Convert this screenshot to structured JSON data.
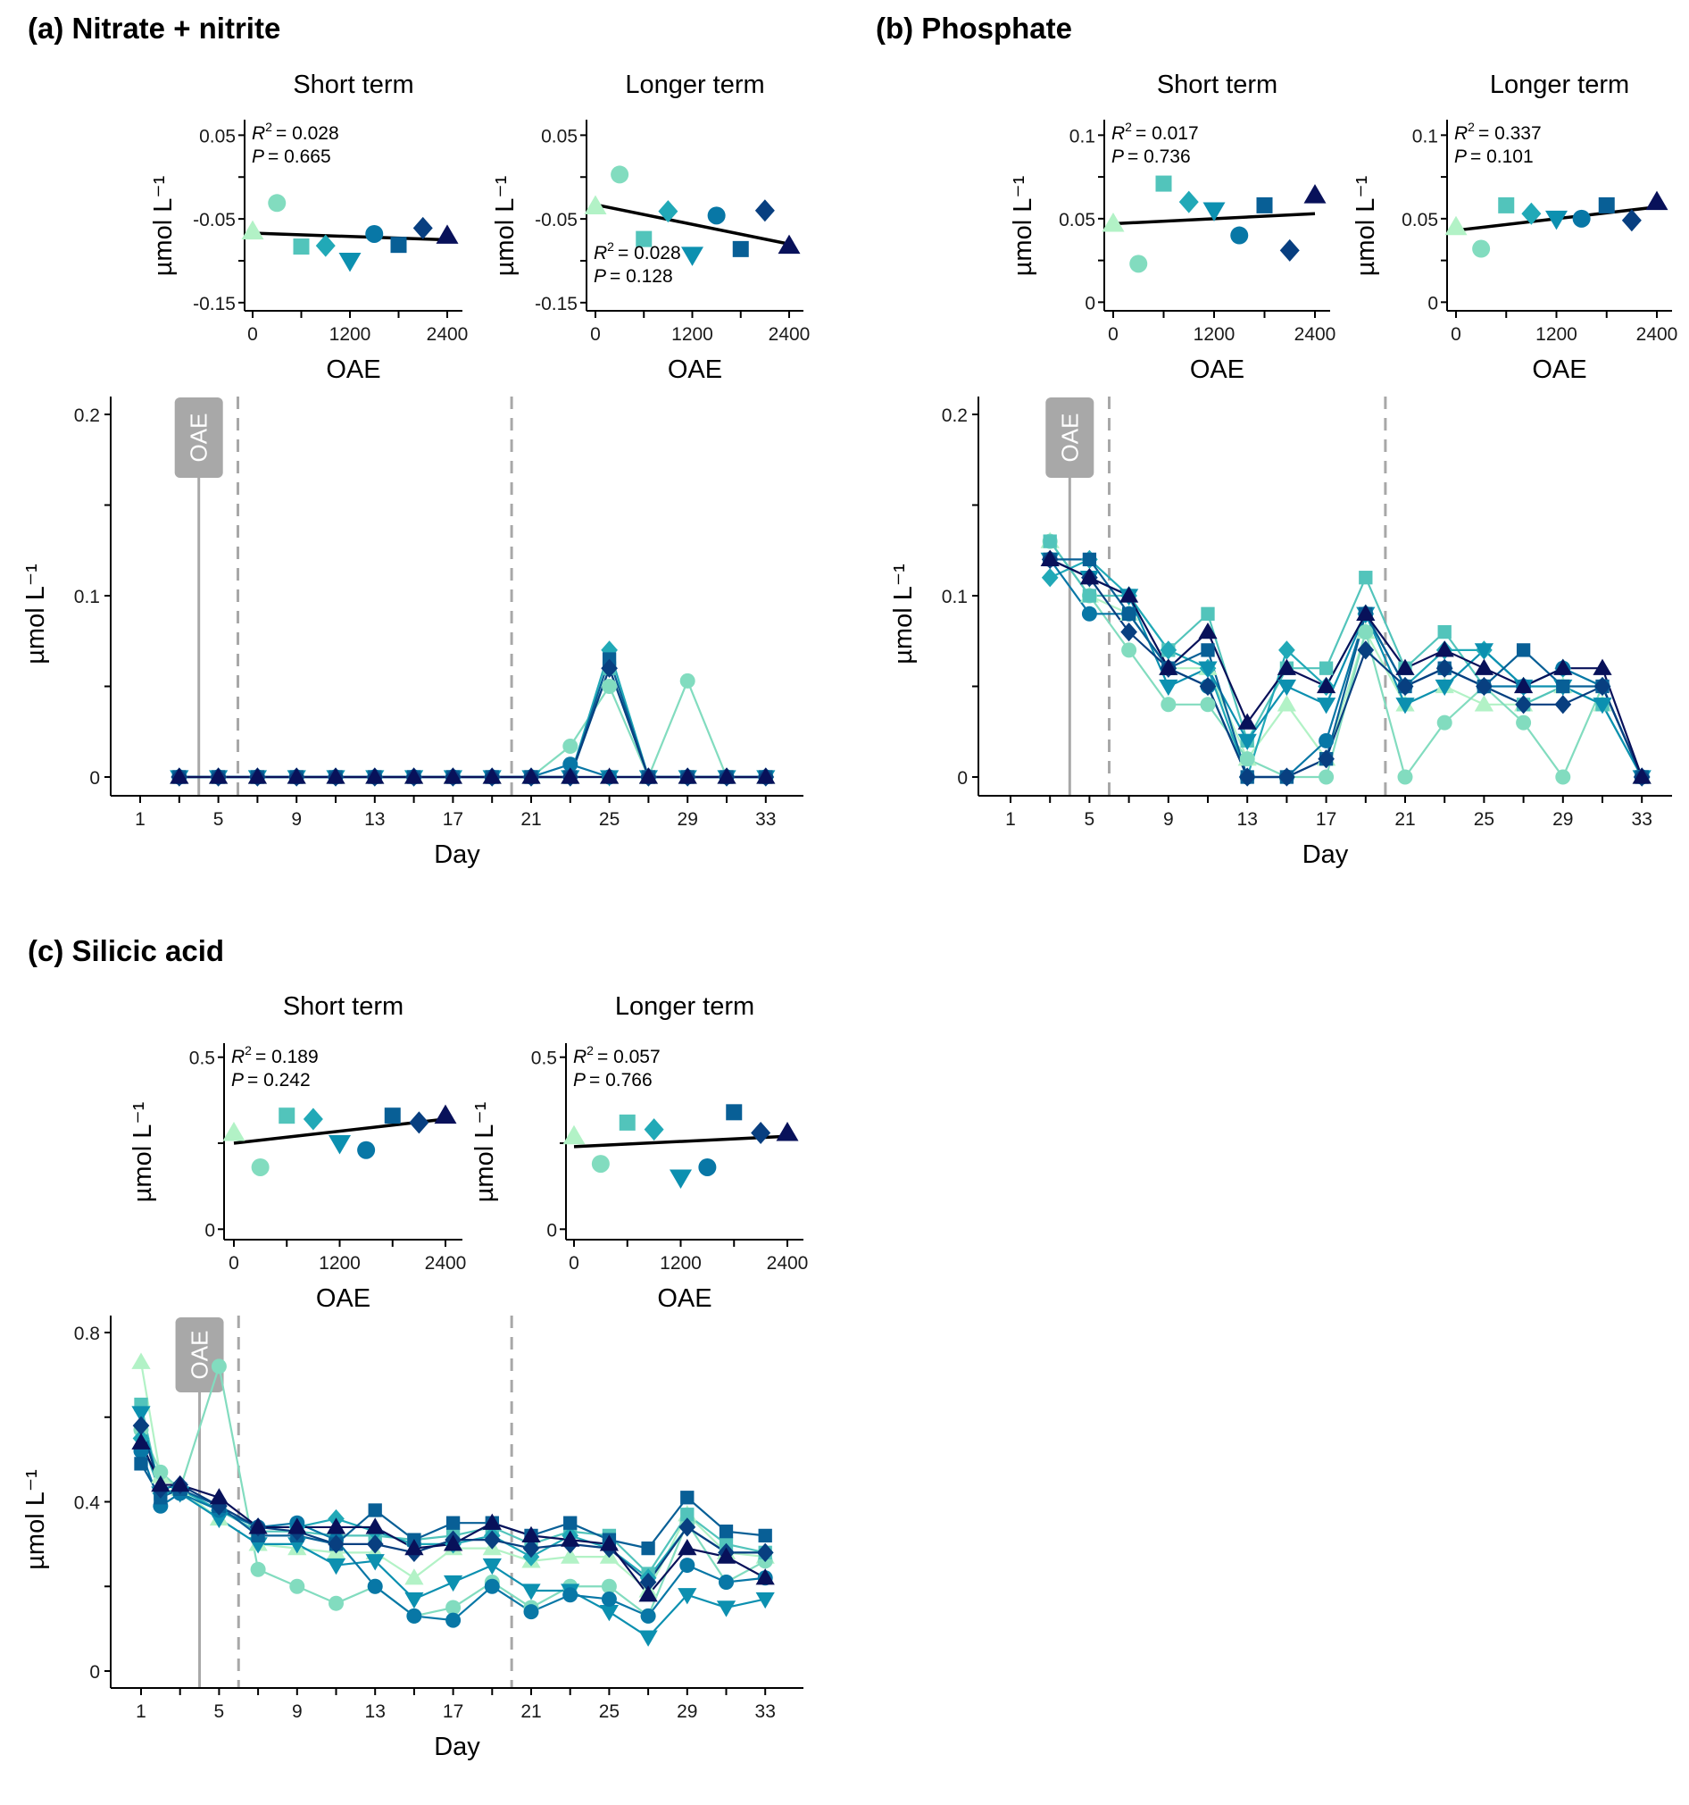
{
  "figure": {
    "colors": {
      "0": "#b2f2c6",
      "300": "#82dcbf",
      "600": "#52c4bb",
      "900": "#21a9b7",
      "1200": "#0c90b0",
      "1500": "#0877a6",
      "1800": "#085f96",
      "2100": "#083f80",
      "2400": "#08115a",
      "fit_line": "#000000",
      "oae_marker": "#a8a8a8"
    },
    "oae_marker_label": "OAE",
    "oae_marker_day": 4,
    "phase_boundaries_days": [
      6,
      20
    ]
  },
  "chart_data": [
    {
      "id": "a",
      "title": "(a) Nitrate + nitrite",
      "type": "line",
      "xlabel": "Day",
      "ylabel": "µmol L⁻¹",
      "ylim": [
        0,
        0.2
      ],
      "yticks": [
        "0",
        "0.1",
        "0.2"
      ],
      "xticks": [
        "1",
        "5",
        "9",
        "13",
        "17",
        "21",
        "25",
        "29",
        "33"
      ],
      "x": [
        3,
        5,
        7,
        9,
        11,
        13,
        15,
        17,
        19,
        21,
        23,
        25,
        27,
        29,
        31,
        33
      ],
      "series": [
        {
          "name": "0",
          "marker": "triangle-up",
          "values": [
            0,
            0,
            0,
            0,
            0,
            0,
            0,
            0,
            0,
            0,
            0,
            0,
            0,
            0,
            0,
            0
          ]
        },
        {
          "name": "300",
          "marker": "circle",
          "values": [
            0,
            0,
            0,
            0,
            0,
            0,
            0,
            0,
            0,
            0,
            0.017,
            0.05,
            0,
            0.053,
            0,
            0
          ]
        },
        {
          "name": "600",
          "marker": "square",
          "values": [
            0,
            0,
            0,
            0,
            0,
            0,
            0,
            0,
            0,
            0,
            0,
            0.06,
            0,
            0,
            0,
            0
          ]
        },
        {
          "name": "900",
          "marker": "diamond",
          "values": [
            0,
            0,
            0,
            0,
            0,
            0,
            0,
            0,
            0,
            0,
            0,
            0.07,
            0,
            0,
            0,
            0
          ]
        },
        {
          "name": "1200",
          "marker": "triangle-down",
          "values": [
            0,
            0,
            0,
            0,
            0,
            0,
            0,
            0,
            0,
            0,
            0,
            0,
            0,
            0,
            0,
            0
          ]
        },
        {
          "name": "1500",
          "marker": "circle",
          "values": [
            0,
            0,
            0,
            0,
            0,
            0,
            0,
            0,
            0,
            0,
            0.007,
            0,
            0,
            0,
            0,
            0
          ]
        },
        {
          "name": "1800",
          "marker": "square",
          "values": [
            0,
            0,
            0,
            0,
            0,
            0,
            0,
            0,
            0,
            0,
            0,
            0.065,
            0,
            0,
            0,
            0
          ]
        },
        {
          "name": "2100",
          "marker": "diamond",
          "values": [
            0,
            0,
            0,
            0,
            0,
            0,
            0,
            0,
            0,
            0,
            0,
            0.06,
            0,
            0,
            0,
            0
          ]
        },
        {
          "name": "2400",
          "marker": "triangle-up",
          "values": [
            0,
            0,
            0,
            0,
            0,
            0,
            0,
            0,
            0,
            0,
            0,
            0,
            0,
            0,
            0,
            0
          ]
        }
      ],
      "insets": [
        {
          "title": "Short term",
          "xlabel": "OAE",
          "ylabel": "µmol L⁻¹",
          "ylim": [
            -0.17,
            0.06
          ],
          "yticks": [
            "-0.15",
            "-0.05",
            "0.05"
          ],
          "ytick_values": [
            -0.15,
            -0.05,
            0.05
          ],
          "xticks": [
            "0",
            "1200",
            "2400"
          ],
          "x": [
            0,
            300,
            600,
            900,
            1200,
            1500,
            1800,
            2100,
            2400
          ],
          "y": [
            -0.065,
            -0.031,
            -0.083,
            -0.082,
            -0.1,
            -0.068,
            -0.081,
            -0.061,
            -0.07
          ],
          "fit": [
            -0.067,
            -0.075
          ],
          "stats": {
            "r2": "= 0.028",
            "p": "= 0.665",
            "position": "top-left"
          }
        },
        {
          "title": "Longer term",
          "xlabel": "OAE",
          "ylabel": "µmol L⁻¹",
          "ylim": [
            -0.17,
            0.06
          ],
          "yticks": [
            "-0.15",
            "-0.05",
            "0.05"
          ],
          "ytick_values": [
            -0.15,
            -0.05,
            0.05
          ],
          "xticks": [
            "0",
            "1200",
            "2400"
          ],
          "x": [
            0,
            300,
            600,
            900,
            1200,
            1500,
            1800,
            2100,
            2400
          ],
          "y": [
            -0.035,
            0.003,
            -0.074,
            -0.041,
            -0.093,
            -0.046,
            -0.086,
            -0.04,
            -0.082
          ],
          "fit": [
            -0.033,
            -0.08
          ],
          "stats": {
            "r2": "= 0.028",
            "p": "= 0.128",
            "position": "bottom-left"
          }
        }
      ]
    },
    {
      "id": "b",
      "title": "(b) Phosphate",
      "type": "line",
      "xlabel": "Day",
      "ylabel": "µmol L⁻¹",
      "ylim": [
        0,
        0.2
      ],
      "yticks": [
        "0",
        "0.1",
        "0.2"
      ],
      "xticks": [
        "1",
        "5",
        "9",
        "13",
        "17",
        "21",
        "25",
        "29",
        "33"
      ],
      "x": [
        3,
        5,
        7,
        9,
        11,
        13,
        15,
        17,
        19,
        21,
        23,
        25,
        27,
        29,
        31,
        33
      ],
      "series": [
        {
          "name": "0",
          "marker": "triangle-up",
          "values": [
            0.13,
            0.1,
            0.09,
            0.06,
            0.06,
            0.01,
            0.04,
            0.01,
            0.08,
            0.04,
            0.05,
            0.04,
            0.04,
            0.05,
            0.04,
            0
          ]
        },
        {
          "name": "300",
          "marker": "circle",
          "values": [
            0.13,
            0.1,
            0.07,
            0.04,
            0.04,
            0.01,
            0,
            0,
            0.08,
            0,
            0.03,
            0.05,
            0.03,
            0,
            0.05,
            0
          ]
        },
        {
          "name": "600",
          "marker": "square",
          "values": [
            0.13,
            0.1,
            0.1,
            0.07,
            0.09,
            0.02,
            0.06,
            0.06,
            0.11,
            0.06,
            0.08,
            0.05,
            0.04,
            0.05,
            0.04,
            0
          ]
        },
        {
          "name": "900",
          "marker": "diamond",
          "values": [
            0.11,
            0.12,
            0.1,
            0.07,
            0.06,
            0,
            0.07,
            0.05,
            0.09,
            0.05,
            0.07,
            0.07,
            0.05,
            0.06,
            0.05,
            0
          ]
        },
        {
          "name": "1200",
          "marker": "triangle-down",
          "values": [
            0.12,
            0.11,
            0.1,
            0.05,
            0.06,
            0.02,
            0.05,
            0.04,
            0.09,
            0.04,
            0.05,
            0.07,
            0.05,
            0.05,
            0.04,
            0
          ]
        },
        {
          "name": "1500",
          "marker": "circle",
          "values": [
            0.12,
            0.09,
            0.09,
            0.06,
            0.05,
            0,
            0,
            0.02,
            0.09,
            0.05,
            0.06,
            0.05,
            0.05,
            0.06,
            0.05,
            0
          ]
        },
        {
          "name": "1800",
          "marker": "square",
          "values": [
            0.12,
            0.12,
            0.09,
            0.06,
            0.07,
            0,
            0,
            0.01,
            0.09,
            0.05,
            0.06,
            0.05,
            0.07,
            0.05,
            0.05,
            0
          ]
        },
        {
          "name": "2100",
          "marker": "diamond",
          "values": [
            0.12,
            0.11,
            0.08,
            0.06,
            0.05,
            0,
            0,
            0.01,
            0.07,
            0.05,
            0.06,
            0.05,
            0.04,
            0.04,
            0.05,
            0
          ]
        },
        {
          "name": "2400",
          "marker": "triangle-up",
          "values": [
            0.12,
            0.11,
            0.1,
            0.06,
            0.08,
            0.03,
            0.06,
            0.05,
            0.09,
            0.06,
            0.07,
            0.06,
            0.05,
            0.06,
            0.06,
            0
          ]
        }
      ],
      "insets": [
        {
          "title": "Short term",
          "xlabel": "OAE",
          "ylabel": "µmol L⁻¹",
          "ylim": [
            -0.004,
            0.105
          ],
          "yticks": [
            "0",
            "0.05",
            "0.1"
          ],
          "ytick_values": [
            0,
            0.05,
            0.1
          ],
          "xticks": [
            "0",
            "1200",
            "2400"
          ],
          "x": [
            0,
            300,
            600,
            900,
            1200,
            1500,
            1800,
            2100,
            2400
          ],
          "y": [
            0.047,
            0.023,
            0.071,
            0.06,
            0.055,
            0.04,
            0.058,
            0.031,
            0.064
          ],
          "fit": [
            0.047,
            0.053
          ],
          "stats": {
            "r2": "= 0.017",
            "p": "= 0.736",
            "position": "top-left"
          }
        },
        {
          "title": "Longer term",
          "xlabel": "OAE",
          "ylabel": "µmol L⁻¹",
          "ylim": [
            -0.004,
            0.105
          ],
          "yticks": [
            "0",
            "0.05",
            "0.1"
          ],
          "ytick_values": [
            0,
            0.05,
            0.1
          ],
          "xticks": [
            "0",
            "1200",
            "2400"
          ],
          "x": [
            0,
            300,
            600,
            900,
            1200,
            1500,
            1800,
            2100,
            2400
          ],
          "y": [
            0.045,
            0.032,
            0.058,
            0.053,
            0.05,
            0.05,
            0.058,
            0.049,
            0.06
          ],
          "fit": [
            0.043,
            0.057
          ],
          "stats": {
            "r2": "= 0.337",
            "p": "= 0.101",
            "position": "top-left"
          }
        }
      ]
    },
    {
      "id": "c",
      "title": "(c) Silicic acid",
      "type": "line",
      "xlabel": "Day",
      "ylabel": "µmol L⁻¹",
      "ylim": [
        0,
        0.8
      ],
      "yticks": [
        "0",
        "0.4",
        "0.8"
      ],
      "xticks": [
        "1",
        "5",
        "9",
        "13",
        "17",
        "21",
        "25",
        "29",
        "33"
      ],
      "x": [
        1,
        2,
        3,
        5,
        7,
        9,
        11,
        13,
        15,
        17,
        19,
        21,
        23,
        25,
        27,
        29,
        31,
        33
      ],
      "series": [
        {
          "name": "0",
          "marker": "triangle-up",
          "values": [
            0.73,
            0.46,
            0.43,
            0.36,
            0.3,
            0.29,
            0.28,
            0.28,
            0.22,
            0.29,
            0.29,
            0.26,
            0.27,
            0.27,
            0.19,
            0.37,
            0.28,
            0.27
          ]
        },
        {
          "name": "300",
          "marker": "circle",
          "values": [
            0.57,
            0.47,
            0.43,
            0.72,
            0.24,
            0.2,
            0.16,
            0.2,
            0.13,
            0.15,
            0.21,
            0.15,
            0.2,
            0.2,
            0.13,
            0.35,
            0.21,
            0.26
          ]
        },
        {
          "name": "600",
          "marker": "square",
          "values": [
            0.63,
            0.42,
            0.43,
            0.38,
            0.33,
            0.33,
            0.32,
            0.32,
            0.31,
            0.32,
            0.34,
            0.3,
            0.33,
            0.32,
            0.23,
            0.37,
            0.3,
            0.28
          ]
        },
        {
          "name": "900",
          "marker": "diamond",
          "values": [
            0.55,
            0.42,
            0.43,
            0.38,
            0.34,
            0.34,
            0.36,
            0.33,
            0.3,
            0.3,
            0.32,
            0.27,
            0.32,
            0.29,
            0.22,
            0.34,
            0.28,
            0.28
          ]
        },
        {
          "name": "1200",
          "marker": "triangle-down",
          "values": [
            0.61,
            0.42,
            0.42,
            0.36,
            0.3,
            0.3,
            0.25,
            0.26,
            0.17,
            0.21,
            0.25,
            0.19,
            0.19,
            0.14,
            0.08,
            0.18,
            0.15,
            0.17
          ]
        },
        {
          "name": "1500",
          "marker": "circle",
          "values": [
            0.52,
            0.39,
            0.42,
            0.38,
            0.34,
            0.35,
            0.31,
            0.2,
            0.13,
            0.12,
            0.2,
            0.14,
            0.18,
            0.17,
            0.13,
            0.25,
            0.21,
            0.22
          ]
        },
        {
          "name": "1800",
          "marker": "square",
          "values": [
            0.49,
            0.41,
            0.43,
            0.39,
            0.32,
            0.32,
            0.3,
            0.38,
            0.31,
            0.35,
            0.35,
            0.32,
            0.35,
            0.31,
            0.29,
            0.41,
            0.33,
            0.32
          ]
        },
        {
          "name": "2100",
          "marker": "diamond",
          "values": [
            0.58,
            0.43,
            0.44,
            0.39,
            0.34,
            0.33,
            0.3,
            0.3,
            0.28,
            0.31,
            0.31,
            0.29,
            0.3,
            0.29,
            0.21,
            0.34,
            0.28,
            0.28
          ]
        },
        {
          "name": "2400",
          "marker": "triangle-up",
          "values": [
            0.54,
            0.44,
            0.44,
            0.41,
            0.34,
            0.34,
            0.34,
            0.34,
            0.29,
            0.3,
            0.35,
            0.32,
            0.31,
            0.3,
            0.18,
            0.29,
            0.27,
            0.22
          ]
        }
      ],
      "insets": [
        {
          "title": "Short term",
          "xlabel": "OAE",
          "ylabel": "µmol L⁻¹",
          "ylim": [
            -0.02,
            0.52
          ],
          "yticks": [
            "0",
            "0.5"
          ],
          "ytick_values": [
            0,
            0.5
          ],
          "xticks": [
            "0",
            "1200",
            "2400"
          ],
          "x": [
            0,
            300,
            600,
            900,
            1200,
            1500,
            1800,
            2100,
            2400
          ],
          "y": [
            0.28,
            0.18,
            0.33,
            0.32,
            0.25,
            0.23,
            0.33,
            0.31,
            0.33
          ],
          "fit": [
            0.25,
            0.32
          ],
          "stats": {
            "r2": "= 0.189",
            "p": "= 0.242",
            "position": "top-left"
          }
        },
        {
          "title": "Longer term",
          "xlabel": "OAE",
          "ylabel": "µmol L⁻¹",
          "ylim": [
            -0.02,
            0.52
          ],
          "yticks": [
            "0",
            "0.5"
          ],
          "ytick_values": [
            0,
            0.5
          ],
          "xticks": [
            "0",
            "1200",
            "2400"
          ],
          "x": [
            0,
            300,
            600,
            900,
            1200,
            1500,
            1800,
            2100,
            2400
          ],
          "y": [
            0.27,
            0.19,
            0.31,
            0.29,
            0.15,
            0.18,
            0.34,
            0.28,
            0.28
          ],
          "fit": [
            0.24,
            0.27
          ],
          "stats": {
            "r2": "= 0.057",
            "p": "= 0.766",
            "position": "top-left"
          }
        }
      ]
    }
  ]
}
